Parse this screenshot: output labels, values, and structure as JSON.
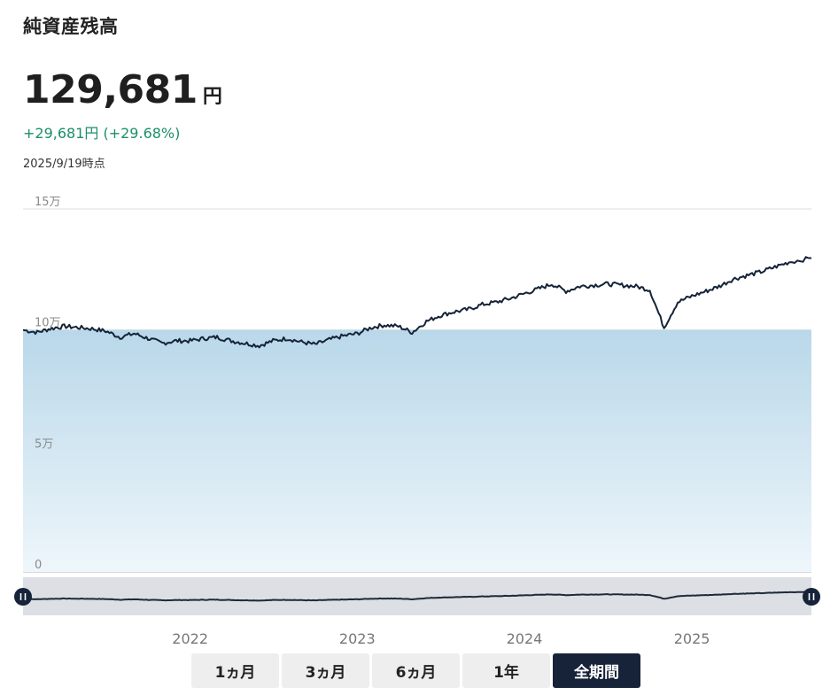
{
  "header": {
    "title": "純資産残高",
    "balance_value": "129,681",
    "balance_unit": "円",
    "change_text": "+29,681円 (+29.68%)",
    "as_of": "2025/9/19時点"
  },
  "colors": {
    "line": "#162338",
    "area_top": "#b9d8e9",
    "area_bottom": "#eef6fb",
    "positive": "#1a8f6a",
    "active_button": "#162338"
  },
  "chart_data": {
    "type": "line",
    "title": "",
    "xlabel": "",
    "ylabel": "",
    "y_ticks": [
      0,
      50000,
      100000,
      150000
    ],
    "y_tick_labels": [
      "0",
      "5万",
      "10万",
      "15万"
    ],
    "ylim": [
      0,
      150000
    ],
    "x_ticks": [
      "2022",
      "2023",
      "2024",
      "2025"
    ],
    "x_range": [
      "2021-01-01",
      "2025-09-19"
    ],
    "baseline": 100000,
    "grid": true,
    "legend": "none",
    "series": [
      {
        "x": [
          "2021-01-01",
          "2021-02-01",
          "2021-03-01",
          "2021-04-01",
          "2021-05-01",
          "2021-06-01",
          "2021-07-01",
          "2021-08-01",
          "2021-09-01",
          "2021-10-01",
          "2021-11-01",
          "2021-12-01",
          "2022-01-01",
          "2022-02-01",
          "2022-03-01",
          "2022-04-01",
          "2022-05-01",
          "2022-06-01",
          "2022-07-01",
          "2022-08-01",
          "2022-09-01",
          "2022-10-01",
          "2022-11-01",
          "2022-12-01",
          "2023-01-01",
          "2023-02-01",
          "2023-03-01",
          "2023-04-01",
          "2023-05-01",
          "2023-06-01",
          "2023-07-01",
          "2023-08-01",
          "2023-09-01",
          "2023-10-01",
          "2023-11-01",
          "2023-12-01",
          "2024-01-01",
          "2024-02-01",
          "2024-03-01",
          "2024-04-01",
          "2024-05-01",
          "2024-06-01",
          "2024-07-01",
          "2024-08-01",
          "2024-09-01",
          "2024-10-01",
          "2024-11-01",
          "2024-12-01",
          "2025-01-01",
          "2025-02-01",
          "2025-03-01",
          "2025-04-01",
          "2025-05-01",
          "2025-06-01",
          "2025-07-01",
          "2025-08-01",
          "2025-09-19"
        ],
        "values": [
          100000,
          99000,
          100500,
          101500,
          101000,
          100500,
          99500,
          97000,
          98500,
          96500,
          94500,
          95500,
          95500,
          96500,
          97000,
          95500,
          94500,
          93500,
          95500,
          96500,
          95000,
          94000,
          96000,
          97500,
          98500,
          101000,
          102000,
          101500,
          99000,
          103500,
          106000,
          107500,
          108500,
          110500,
          111500,
          113000,
          115000,
          117000,
          119000,
          116000,
          118000,
          118500,
          119000,
          118500,
          118000,
          116500,
          101000,
          111500,
          114000,
          116000,
          118000,
          121000,
          122500,
          124000,
          126000,
          128000,
          129681
        ]
      }
    ]
  },
  "range_buttons": {
    "m1": "1ヵ月",
    "m3": "3ヵ月",
    "m6": "6ヵ月",
    "y1": "1年",
    "all": "全期間"
  }
}
